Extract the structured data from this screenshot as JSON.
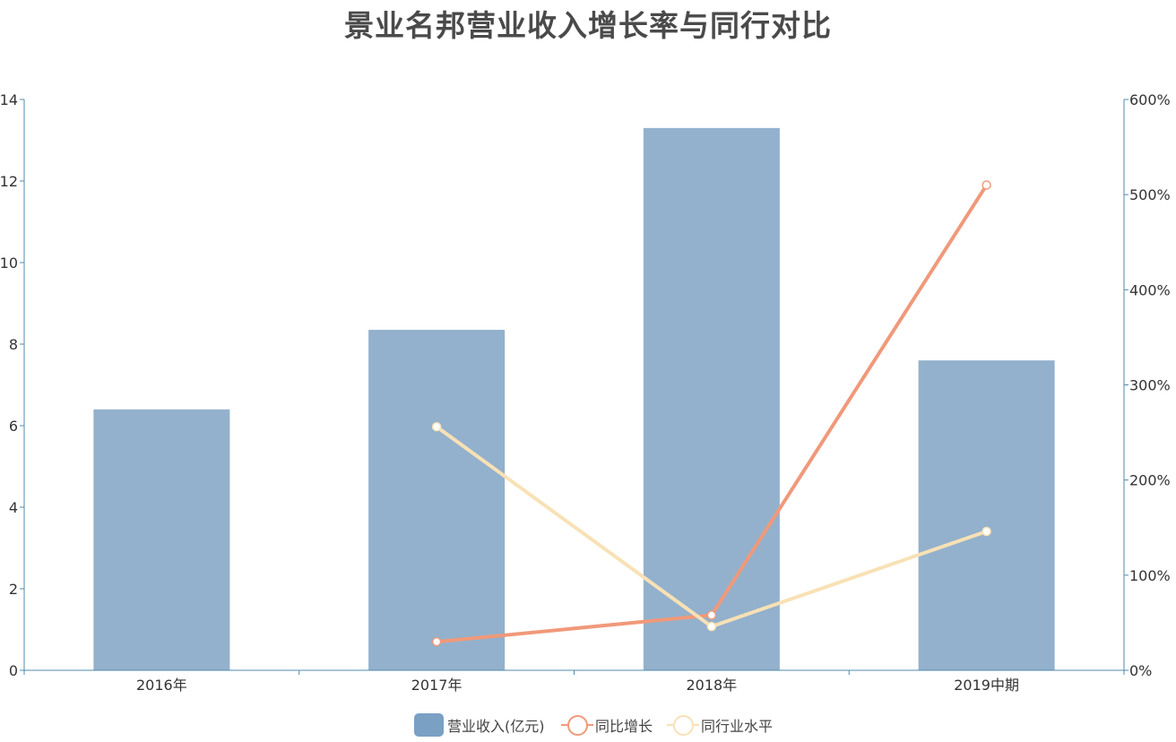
{
  "title": "景业名邦营业收入增长率与同行对比",
  "colors": {
    "bar": "#93b1cc",
    "growth": "#f0997a",
    "industry": "#f8e1b5",
    "axis": "#4f8bad",
    "text": "#333333"
  },
  "legend": {
    "bar": "营业收入(亿元)",
    "growth": "同比增长",
    "industry": "同行业水平"
  },
  "chart_data": {
    "type": "bar",
    "categories": [
      "2016年",
      "2017年",
      "2018年",
      "2019中期"
    ],
    "left_axis": {
      "ylim": [
        0,
        14
      ],
      "ticks": [
        "0",
        "2",
        "4",
        "6",
        "8",
        "10",
        "12",
        "14"
      ]
    },
    "right_axis": {
      "ylim": [
        0,
        600
      ],
      "unit": "%",
      "ticks": [
        "0%",
        "100%",
        "200%",
        "300%",
        "400%",
        "500%",
        "600%"
      ]
    },
    "series": [
      {
        "name": "营业收入(亿元)",
        "kind": "bar",
        "axis": "left",
        "values": [
          6.4,
          8.35,
          13.3,
          7.6
        ]
      },
      {
        "name": "同比增长",
        "kind": "line",
        "axis": "right",
        "values": [
          null,
          30,
          58,
          510
        ]
      },
      {
        "name": "同行业水平",
        "kind": "line",
        "axis": "right",
        "values": [
          null,
          256,
          46,
          146
        ]
      }
    ]
  }
}
